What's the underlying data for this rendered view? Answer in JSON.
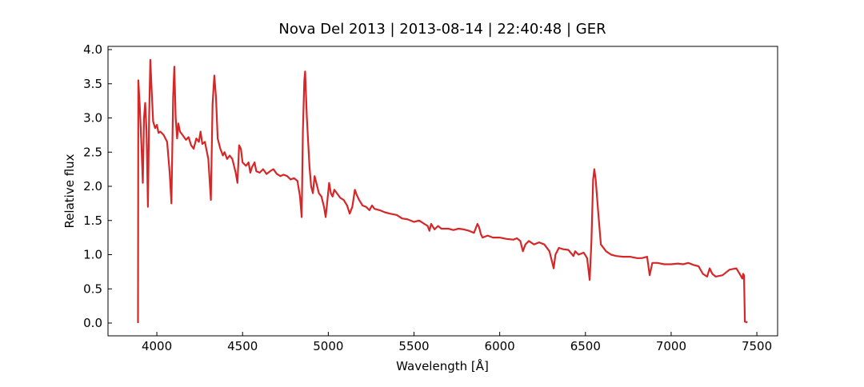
{
  "chart_data": {
    "type": "line",
    "title": "Nova Del 2013 | 2013-08-14 | 22:40:48 | GER",
    "x_label": "Wavelength [Å]",
    "y_label": "Relative flux",
    "color": "#d62728",
    "xlim": [
      3715,
      7621
    ],
    "ylim": [
      -0.187,
      4.047
    ],
    "xticks": [
      4000,
      4500,
      5000,
      5500,
      6000,
      6500,
      7000,
      7500
    ],
    "yticks": [
      {
        "value": 0,
        "label": "0.0"
      },
      0.5,
      {
        "value": 1,
        "label": "1.0"
      },
      1.5,
      {
        "value": 2,
        "label": "2.0"
      },
      2.5,
      {
        "value": 3,
        "label": "3.0"
      },
      3.5,
      {
        "value": 4,
        "label": "4.0"
      }
    ],
    "x": [
      3890,
      3892,
      3900,
      3910,
      3918,
      3925,
      3932,
      3940,
      3948,
      3955,
      3962,
      3970,
      3978,
      3990,
      4000,
      4010,
      4020,
      4040,
      4060,
      4075,
      4085,
      4095,
      4102,
      4110,
      4118,
      4125,
      4135,
      4150,
      4170,
      4185,
      4200,
      4215,
      4230,
      4245,
      4255,
      4265,
      4280,
      4300,
      4315,
      4325,
      4335,
      4345,
      4355,
      4370,
      4385,
      4395,
      4410,
      4425,
      4440,
      4460,
      4470,
      4480,
      4490,
      4500,
      4520,
      4535,
      4545,
      4555,
      4570,
      4580,
      4600,
      4620,
      4640,
      4660,
      4680,
      4700,
      4720,
      4740,
      4760,
      4780,
      4800,
      4820,
      4835,
      4845,
      4852,
      4860,
      4865,
      4875,
      4890,
      4900,
      4910,
      4920,
      4930,
      4945,
      4960,
      4975,
      4985,
      4995,
      5005,
      5015,
      5025,
      5035,
      5050,
      5070,
      5090,
      5110,
      5125,
      5140,
      5155,
      5165,
      5180,
      5200,
      5220,
      5240,
      5255,
      5270,
      5300,
      5330,
      5360,
      5400,
      5430,
      5460,
      5500,
      5530,
      5560,
      5580,
      5590,
      5600,
      5620,
      5640,
      5660,
      5700,
      5730,
      5760,
      5790,
      5820,
      5850,
      5870,
      5880,
      5890,
      5900,
      5930,
      5960,
      6000,
      6040,
      6080,
      6100,
      6120,
      6135,
      6150,
      6170,
      6200,
      6230,
      6260,
      6290,
      6305,
      6315,
      6325,
      6345,
      6370,
      6400,
      6430,
      6440,
      6460,
      6490,
      6510,
      6525,
      6535,
      6545,
      6552,
      6560,
      6575,
      6590,
      6620,
      6650,
      6680,
      6720,
      6760,
      6800,
      6830,
      6860,
      6875,
      6890,
      6920,
      6960,
      7000,
      7040,
      7070,
      7100,
      7130,
      7160,
      7185,
      7210,
      7225,
      7240,
      7260,
      7300,
      7340,
      7380,
      7400,
      7415,
      7420,
      7425,
      7430,
      7445
    ],
    "values": [
      0.0,
      3.55,
      3.2,
      2.6,
      2.05,
      3.0,
      3.22,
      2.8,
      1.7,
      3.0,
      3.85,
      3.4,
      2.95,
      2.85,
      2.9,
      2.78,
      2.8,
      2.75,
      2.65,
      2.2,
      1.75,
      3.3,
      3.75,
      3.0,
      2.7,
      2.92,
      2.8,
      2.75,
      2.68,
      2.72,
      2.6,
      2.55,
      2.7,
      2.65,
      2.8,
      2.62,
      2.65,
      2.4,
      1.8,
      3.2,
      3.62,
      3.3,
      2.7,
      2.55,
      2.45,
      2.5,
      2.4,
      2.45,
      2.4,
      2.2,
      2.05,
      2.6,
      2.55,
      2.35,
      2.3,
      2.35,
      2.2,
      2.28,
      2.35,
      2.22,
      2.2,
      2.25,
      2.18,
      2.22,
      2.25,
      2.18,
      2.15,
      2.17,
      2.15,
      2.1,
      2.12,
      2.08,
      1.85,
      1.55,
      2.8,
      3.55,
      3.68,
      3.0,
      2.3,
      2.0,
      1.9,
      2.15,
      2.05,
      1.9,
      1.85,
      1.7,
      1.55,
      1.8,
      2.05,
      1.9,
      1.85,
      1.95,
      1.9,
      1.83,
      1.8,
      1.72,
      1.6,
      1.7,
      1.95,
      1.88,
      1.8,
      1.72,
      1.7,
      1.65,
      1.72,
      1.67,
      1.65,
      1.62,
      1.6,
      1.58,
      1.53,
      1.52,
      1.48,
      1.5,
      1.45,
      1.42,
      1.35,
      1.45,
      1.37,
      1.42,
      1.38,
      1.38,
      1.36,
      1.38,
      1.37,
      1.35,
      1.32,
      1.45,
      1.4,
      1.3,
      1.25,
      1.28,
      1.25,
      1.25,
      1.23,
      1.22,
      1.24,
      1.2,
      1.05,
      1.15,
      1.2,
      1.15,
      1.18,
      1.15,
      1.05,
      0.9,
      0.8,
      1.0,
      1.1,
      1.08,
      1.07,
      0.98,
      1.05,
      1.0,
      1.03,
      0.95,
      0.63,
      1.2,
      2.1,
      2.25,
      2.1,
      1.6,
      1.15,
      1.05,
      1.0,
      0.98,
      0.97,
      0.97,
      0.95,
      0.95,
      0.97,
      0.7,
      0.88,
      0.88,
      0.86,
      0.86,
      0.87,
      0.86,
      0.88,
      0.85,
      0.83,
      0.72,
      0.68,
      0.8,
      0.72,
      0.68,
      0.7,
      0.78,
      0.8,
      0.72,
      0.65,
      0.72,
      0.7,
      0.02,
      0.01
    ]
  }
}
